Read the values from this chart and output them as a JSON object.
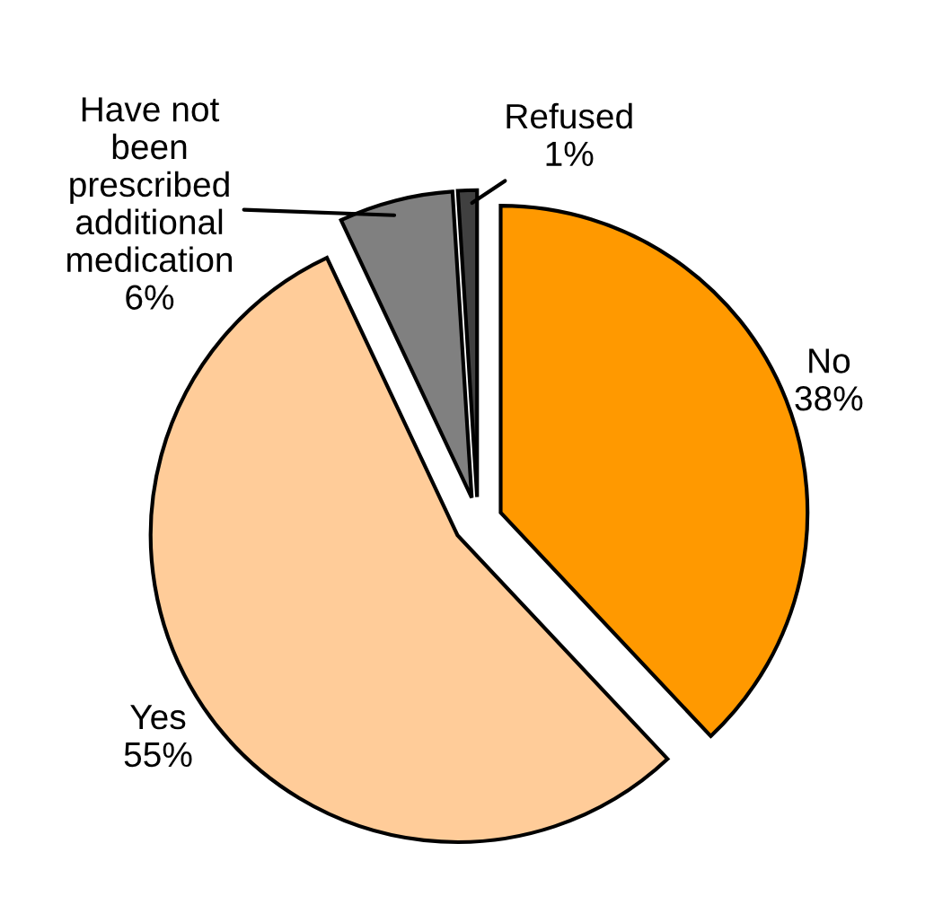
{
  "chart_data": {
    "type": "pie",
    "categories": [
      "No",
      "Yes",
      "Have not\nbeen\nprescribed\nadditional\nmedication",
      "Refused"
    ],
    "values": [
      38,
      55,
      6,
      1
    ],
    "value_labels": [
      "38%",
      "55%",
      "6%",
      "1%"
    ],
    "colors": [
      "#ff9900",
      "#ffcc99",
      "#808080",
      "#404040"
    ],
    "legend": false
  }
}
